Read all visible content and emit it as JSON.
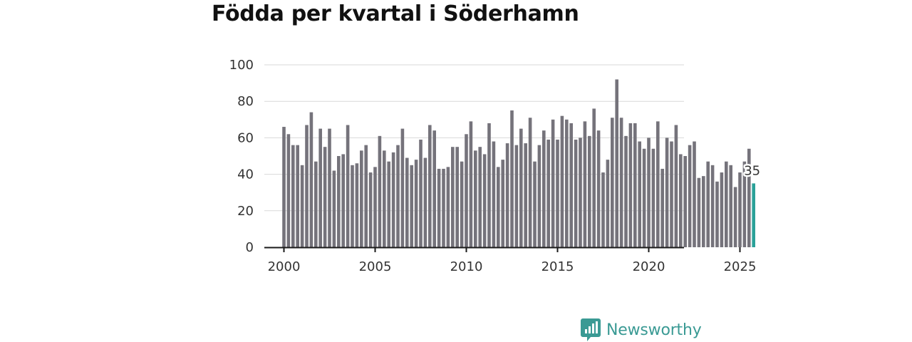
{
  "title": "Födda per kvartal i Söderhamn",
  "brand": {
    "name": "Newsworthy",
    "color": "#3a9a94"
  },
  "colors": {
    "bar": "#75737b",
    "highlight": "#2aa198"
  },
  "chart_data": {
    "type": "bar",
    "title": "Födda per kvartal i Söderhamn",
    "xlabel": "",
    "ylabel": "",
    "ylim": [
      0,
      100
    ],
    "yticks": [
      "0",
      "20",
      "40",
      "60",
      "80",
      "100"
    ],
    "xticks": [
      "2000",
      "2005",
      "2010",
      "2015",
      "2020",
      "2025"
    ],
    "grid": true,
    "categories": [
      "2000 K1",
      "2000 K2",
      "2000 K3",
      "2000 K4",
      "2001 K1",
      "2001 K2",
      "2001 K3",
      "2001 K4",
      "2002 K1",
      "2002 K2",
      "2002 K3",
      "2002 K4",
      "2003 K1",
      "2003 K2",
      "2003 K3",
      "2003 K4",
      "2004 K1",
      "2004 K2",
      "2004 K3",
      "2004 K4",
      "2005 K1",
      "2005 K2",
      "2005 K3",
      "2005 K4",
      "2006 K1",
      "2006 K2",
      "2006 K3",
      "2006 K4",
      "2007 K1",
      "2007 K2",
      "2007 K3",
      "2007 K4",
      "2008 K1",
      "2008 K2",
      "2008 K3",
      "2008 K4",
      "2009 K1",
      "2009 K2",
      "2009 K3",
      "2009 K4",
      "2010 K1",
      "2010 K2",
      "2010 K3",
      "2010 K4",
      "2011 K1",
      "2011 K2",
      "2011 K3",
      "2011 K4",
      "2012 K1",
      "2012 K2",
      "2012 K3",
      "2012 K4",
      "2013 K1",
      "2013 K2",
      "2013 K3",
      "2013 K4",
      "2014 K1",
      "2014 K2",
      "2014 K3",
      "2014 K4",
      "2015 K1",
      "2015 K2",
      "2015 K3",
      "2015 K4",
      "2016 K1",
      "2016 K2",
      "2016 K3",
      "2016 K4",
      "2017 K1",
      "2017 K2",
      "2017 K3",
      "2017 K4",
      "2018 K1",
      "2018 K2",
      "2018 K3",
      "2018 K4",
      "2019 K1",
      "2019 K2",
      "2019 K3",
      "2019 K4",
      "2020 K1",
      "2020 K2",
      "2020 K3",
      "2020 K4",
      "2021 K1",
      "2021 K2",
      "2021 K3",
      "2021 K4",
      "2022 K1",
      "2022 K2",
      "2022 K3",
      "2022 K4",
      "2023 K1",
      "2023 K2",
      "2023 K3",
      "2023 K4",
      "2024 K1",
      "2024 K2",
      "2024 K3",
      "2024 K4",
      "2025 K1",
      "2025 K2",
      "2025 K3",
      "2025 K4"
    ],
    "values": [
      66,
      62,
      56,
      56,
      45,
      67,
      74,
      47,
      65,
      55,
      65,
      42,
      50,
      51,
      67,
      45,
      46,
      53,
      56,
      41,
      44,
      61,
      53,
      47,
      52,
      56,
      65,
      49,
      45,
      48,
      59,
      49,
      67,
      64,
      43,
      43,
      44,
      55,
      55,
      47,
      62,
      69,
      53,
      55,
      51,
      68,
      58,
      44,
      48,
      57,
      75,
      56,
      65,
      57,
      71,
      47,
      56,
      64,
      59,
      70,
      59,
      72,
      70,
      68,
      59,
      60,
      69,
      61,
      76,
      64,
      41,
      48,
      71,
      92,
      71,
      61,
      68,
      68,
      58,
      54,
      60,
      54,
      69,
      43,
      60,
      58,
      67,
      51,
      50,
      56,
      58,
      38,
      39,
      47,
      45,
      36,
      41,
      47,
      45,
      33,
      41,
      47,
      54,
      35
    ],
    "highlight": {
      "category": "2025 K4",
      "value": 35,
      "label": "35"
    }
  }
}
